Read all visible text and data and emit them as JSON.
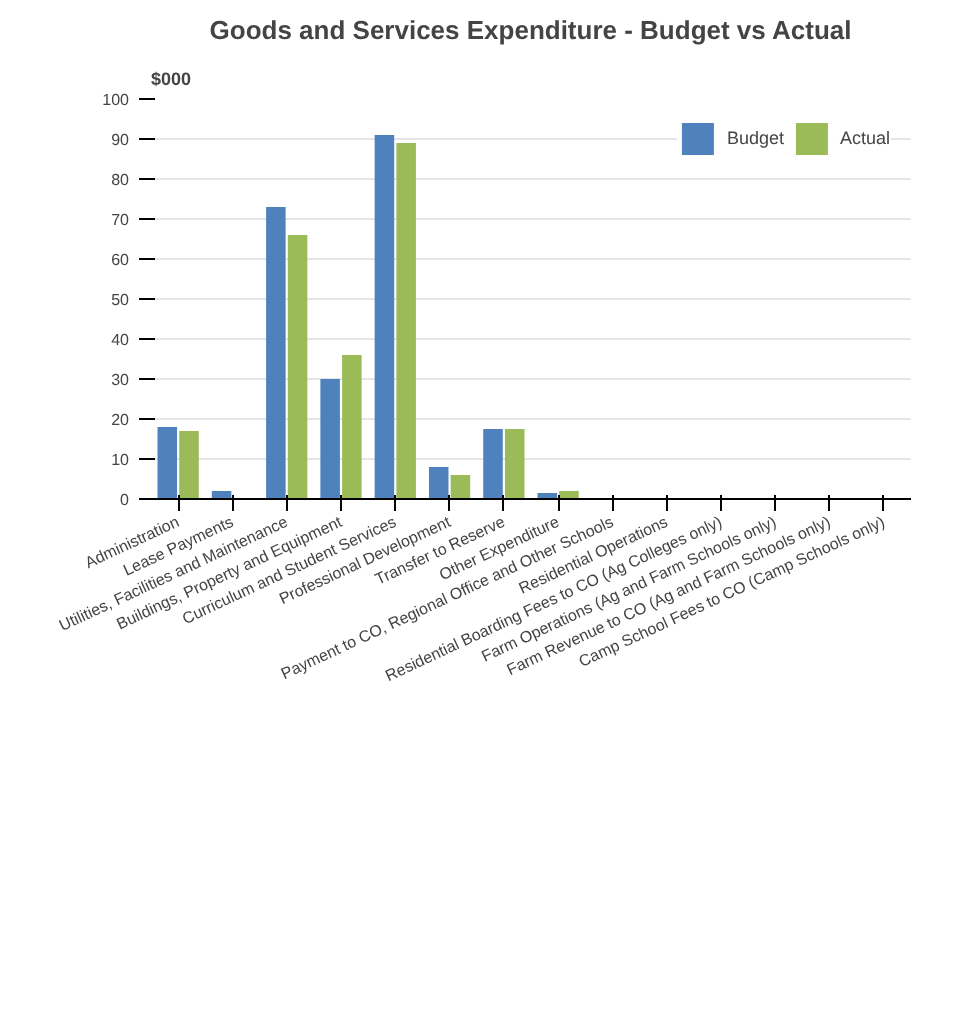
{
  "chart_data": {
    "type": "bar",
    "title": "Goods and Services Expenditure - Budget vs Actual",
    "ylabel": "$000",
    "categories": [
      "Administration",
      "Lease Payments",
      "Utilities, Facilities and Maintenance",
      "Buildings, Property and Equipment",
      "Curriculum and Student Services",
      "Professional Development",
      "Transfer to Reserve",
      "Other Expenditure",
      "Payment to CO, Regional Office and Other Schools",
      "Residential Operations",
      "Residential Boarding Fees to CO (Ag Colleges only)",
      "Farm Operations (Ag and Farm Schools only)",
      "Farm Revenue to CO (Ag and Farm Schools only)",
      "Camp School Fees to CO (Camp Schools only)"
    ],
    "series": [
      {
        "name": "Budget",
        "color": "#4f81bd",
        "values": [
          18,
          2,
          73,
          30,
          91,
          8,
          17.5,
          1.5,
          0,
          0,
          0,
          0,
          0,
          0
        ]
      },
      {
        "name": "Actual",
        "color": "#9bbb59",
        "values": [
          17,
          0,
          66,
          36,
          89,
          6,
          17.5,
          2,
          0,
          0,
          0,
          0,
          0,
          0
        ]
      }
    ],
    "ylim": [
      0,
      100
    ],
    "yticks": [
      0,
      10,
      20,
      30,
      40,
      50,
      60,
      70,
      80,
      90,
      100
    ],
    "grid": "y",
    "legend": "top right"
  }
}
